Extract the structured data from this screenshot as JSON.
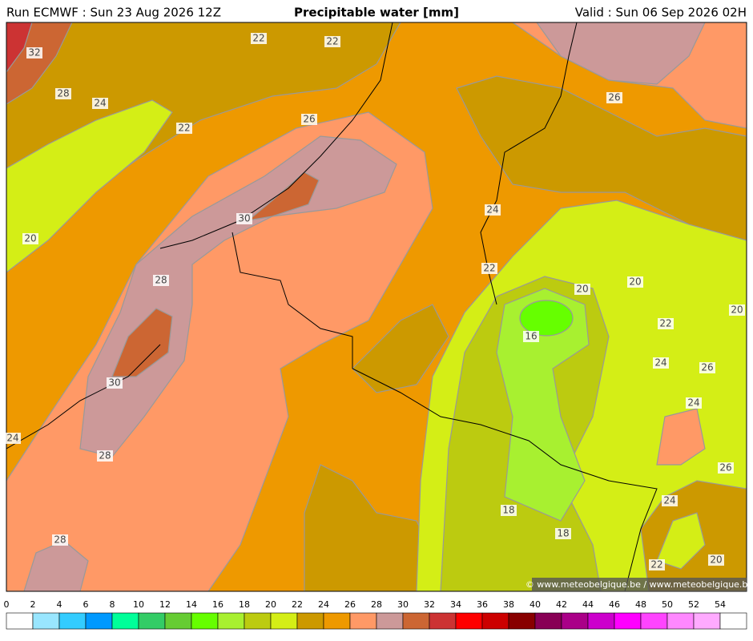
{
  "header": {
    "run": "Run ECMWF : Sun 23 Aug 2026 12Z",
    "title": "Precipitable water [mm]",
    "valid": "Valid : Sun 06 Sep 2026 02H"
  },
  "map": {
    "contour_labels": [
      32,
      28,
      24,
      22,
      22,
      22,
      26,
      26,
      30,
      20,
      24,
      22,
      28,
      20,
      20,
      20,
      16,
      22,
      24,
      26,
      30,
      24,
      24,
      28,
      26,
      18,
      24,
      18,
      28,
      22,
      20
    ],
    "credit": "© www.meteobelgique.be / www.meteobelgique.be"
  },
  "colorbar": {
    "ticks": [
      0,
      2,
      4,
      6,
      8,
      10,
      12,
      14,
      16,
      18,
      20,
      22,
      24,
      26,
      28,
      30,
      32,
      34,
      36,
      38,
      40,
      42,
      44,
      46,
      48,
      50,
      52,
      54
    ],
    "colors": [
      "#ffffff",
      "#99e6ff",
      "#33ccff",
      "#0099ff",
      "#00ff99",
      "#33cc66",
      "#66cc33",
      "#66ff00",
      "#a8f030",
      "#bccb10",
      "#d4ee16",
      "#cc9900",
      "#ee9900",
      "#ff9966",
      "#cc9999",
      "#cc6633",
      "#cc3333",
      "#ff0000",
      "#cc0000",
      "#880000",
      "#880055",
      "#aa0088",
      "#cc00cc",
      "#ff00ff",
      "#ff44ff",
      "#ff88ff",
      "#ffaaff",
      "#ffffff"
    ]
  }
}
